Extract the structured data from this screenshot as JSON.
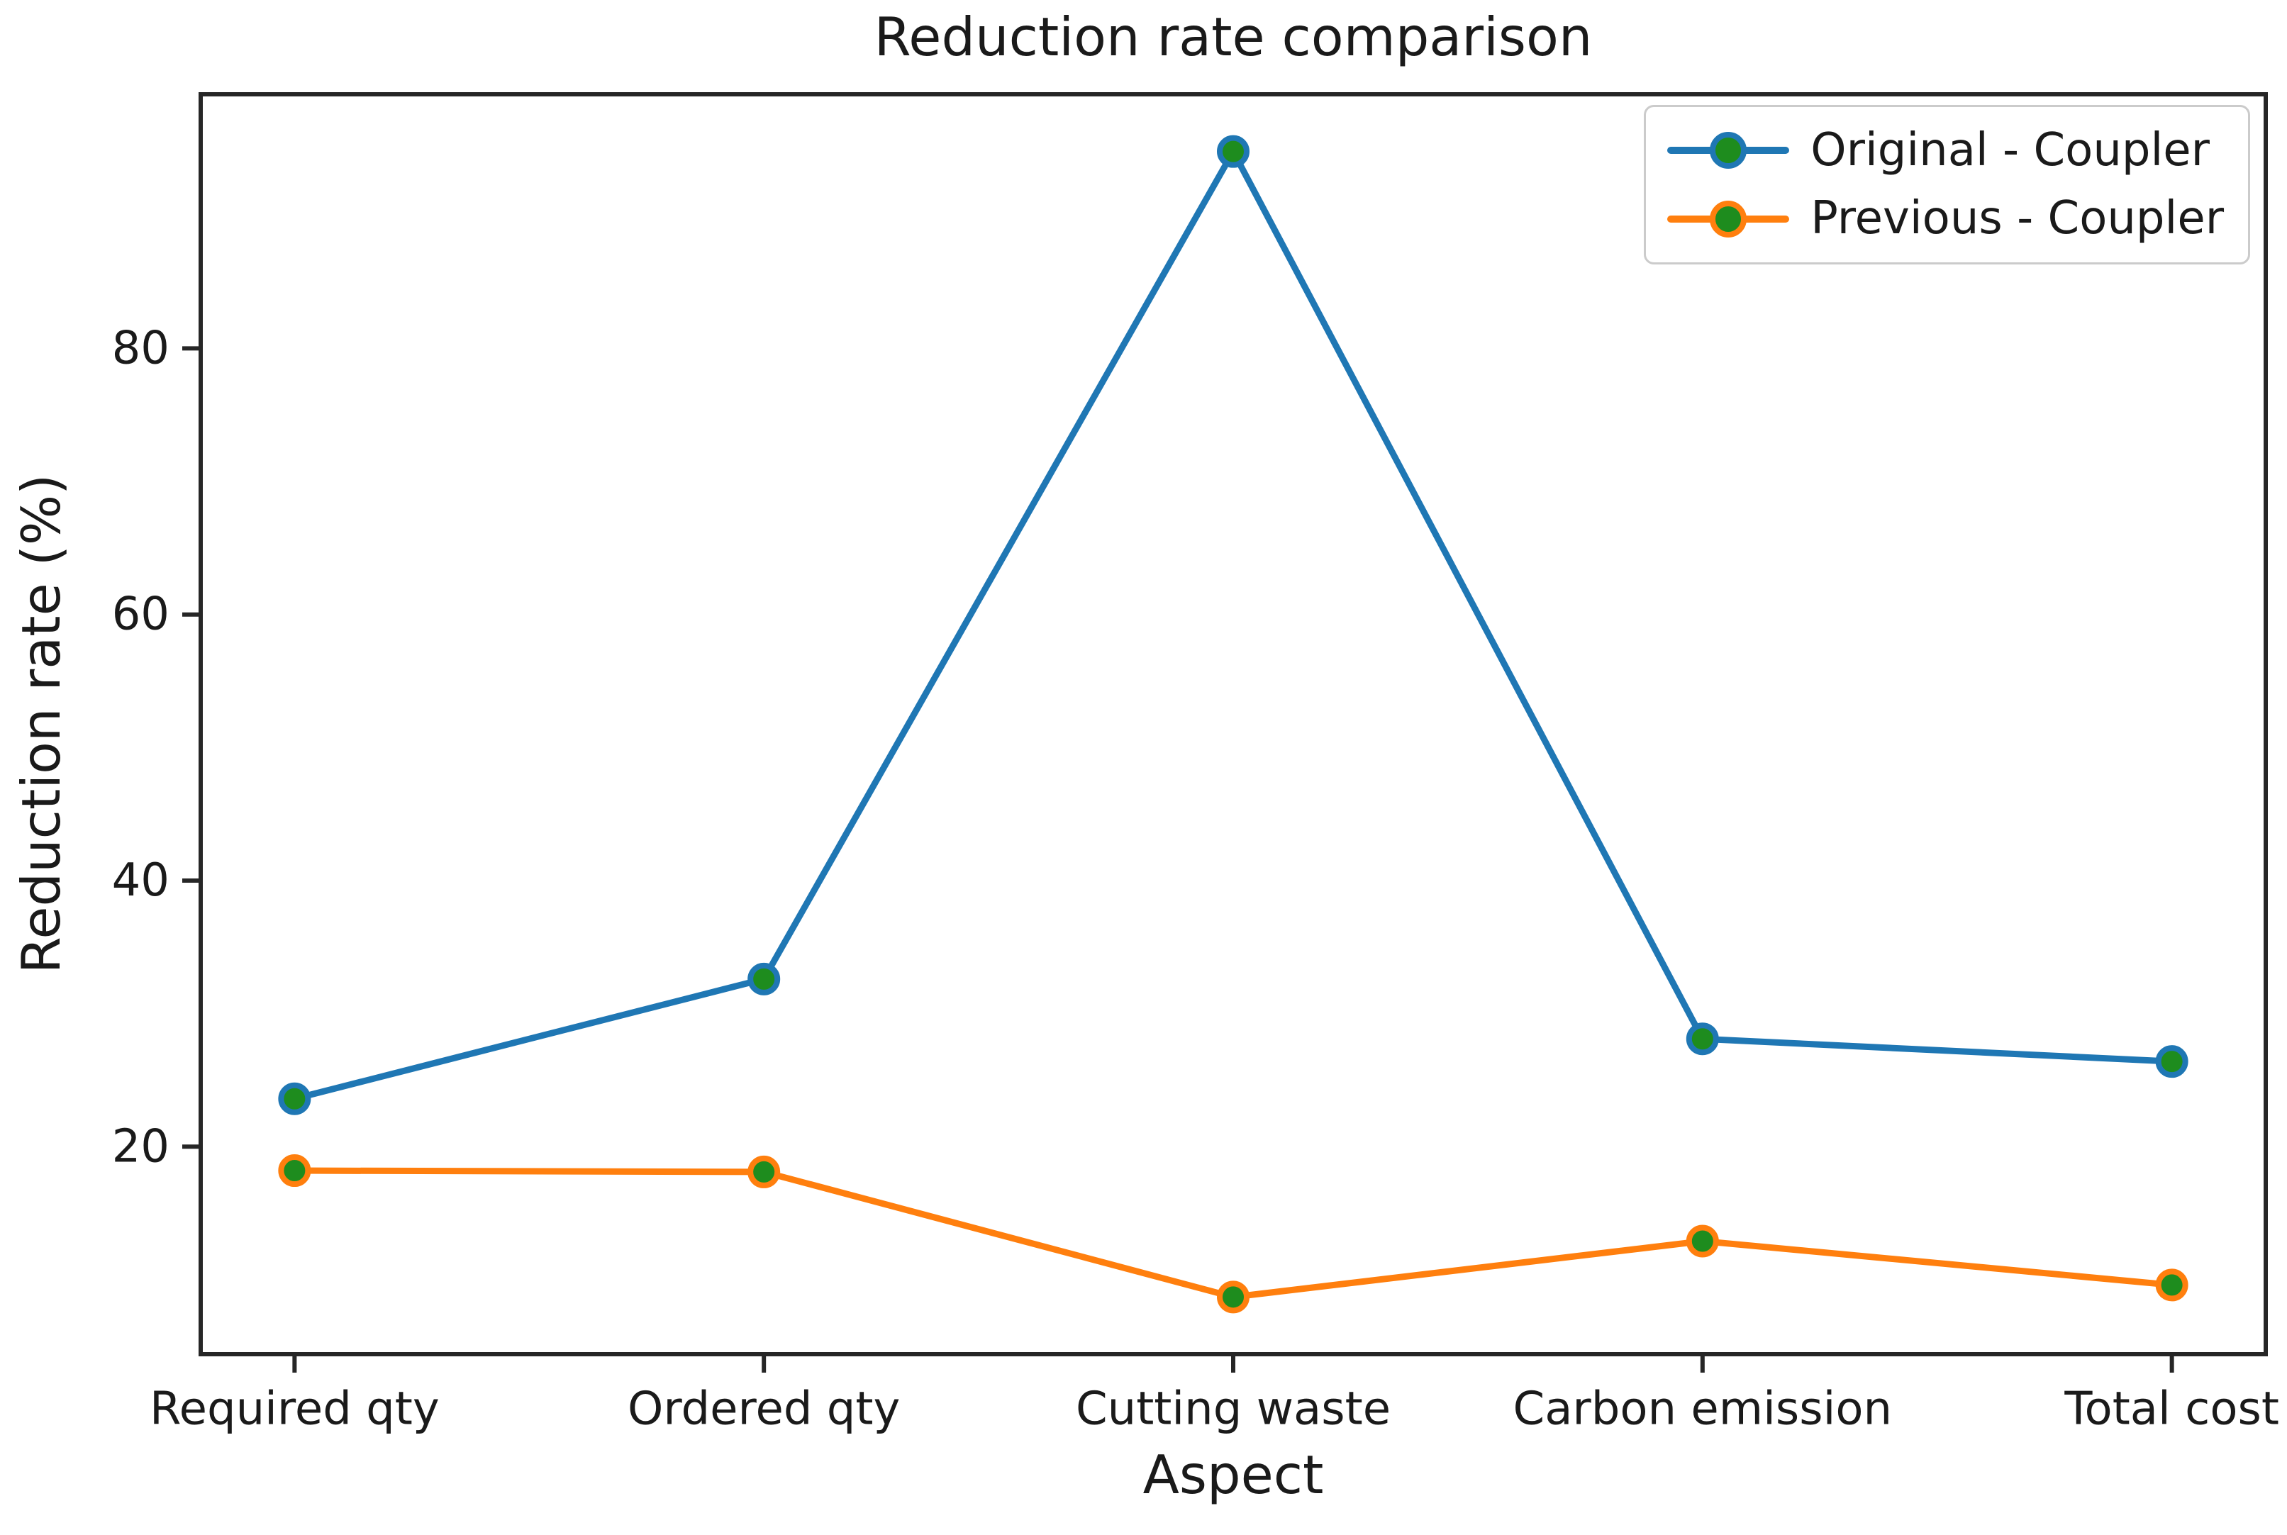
{
  "chart_data": {
    "type": "line",
    "title": "Reduction rate comparison",
    "xlabel": "Aspect",
    "ylabel": "Reduction rate (%)",
    "categories": [
      "Required qty",
      "Ordered qty",
      "Cutting waste",
      "Carbon emission",
      "Total cost"
    ],
    "yticks": [
      20,
      40,
      60,
      80
    ],
    "ylim": [
      4.4,
      99.1
    ],
    "grid": false,
    "legend_position": "upper right",
    "axis_color": "#262626",
    "text_color": "#1a1a1a",
    "marker_shape": "circle",
    "marker_face_color": "#1e8c1e",
    "series": [
      {
        "name": "Original - Coupler",
        "line_color": "#1f77b4",
        "marker_face_color": "#1e8c1e",
        "values": [
          23.6,
          32.6,
          94.8,
          28.1,
          26.4
        ]
      },
      {
        "name": "Previous - Coupler",
        "line_color": "#ff7f0e",
        "marker_face_color": "#1e8c1e",
        "values": [
          18.2,
          18.1,
          8.7,
          12.9,
          9.6
        ]
      }
    ]
  }
}
